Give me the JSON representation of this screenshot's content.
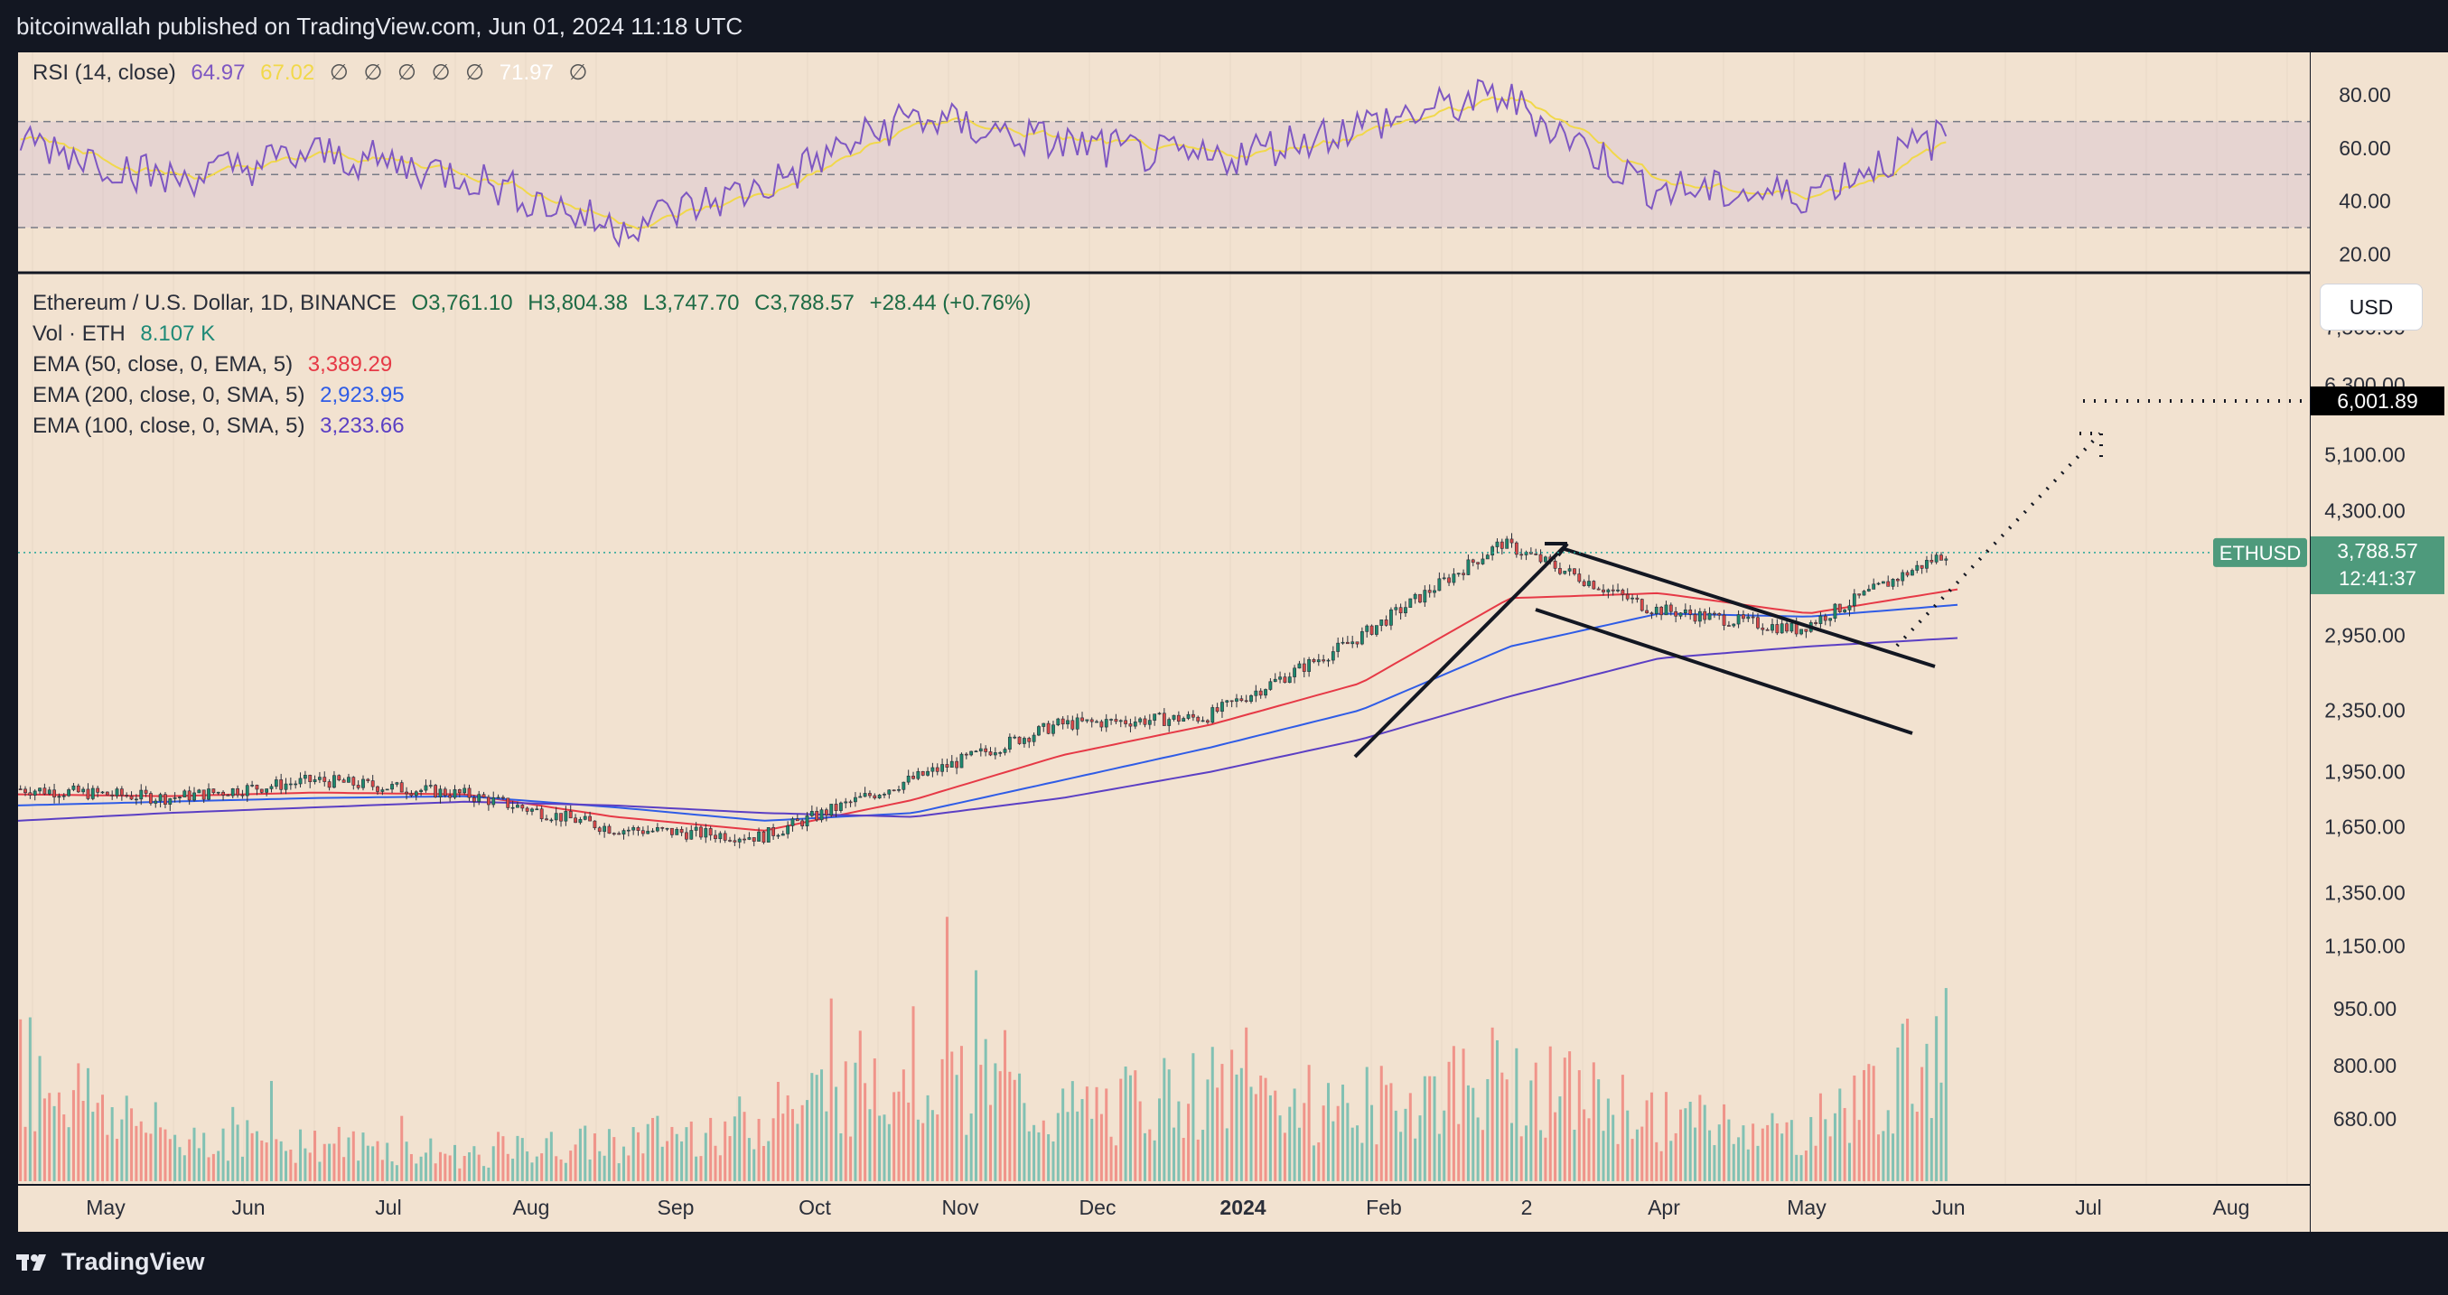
{
  "header": {
    "published_text": "bitcoinwallah published on TradingView.com, Jun 01, 2024 11:18 UTC"
  },
  "footer": {
    "brand": "TradingView"
  },
  "rsi_panel": {
    "label": "RSI (14, close)",
    "rsi_value": "64.97",
    "sma_value": "67.02",
    "flags": [
      "∅",
      "∅",
      "∅",
      "∅",
      "∅"
    ],
    "upper_value": "71.97",
    "extra_flag": "∅",
    "axis_ticks": [
      "80.00",
      "60.00",
      "40.00",
      "20.00"
    ]
  },
  "price_panel": {
    "symbol_line": "Ethereum / U.S. Dollar, 1D, BINANCE",
    "ohlc": {
      "o": "O3,761.10",
      "h": "H3,804.38",
      "l": "L3,747.70",
      "c": "C3,788.57",
      "change": "+28.44 (+0.76%)"
    },
    "volume": {
      "label": "Vol · ETH",
      "value": "8.107 K"
    },
    "indicators": [
      {
        "label": "EMA (50, close, 0, EMA, 5)",
        "value": "3,389.29",
        "color": "#e63946"
      },
      {
        "label": "EMA (200, close, 0, SMA, 5)",
        "value": "2,923.95",
        "color": "#2f5ce6"
      },
      {
        "label": "EMA (100, close, 0, SMA, 5)",
        "value": "3,233.66",
        "color": "#5b3fc4"
      }
    ],
    "currency_button": "USD",
    "target_label": "6,001.89",
    "symbol_tag": "ETHUSD",
    "last_price_label": "3,788.57",
    "countdown": "12:41:37",
    "price_axis_ticks": [
      "7,500.00",
      "6,300.00",
      "5,100.00",
      "4,300.00",
      "2,950.00",
      "2,350.00",
      "1,950.00",
      "1,650.00",
      "1,350.00",
      "1,150.00",
      "950.00",
      "800.00",
      "680.00"
    ]
  },
  "time_axis": [
    "May",
    "Jun",
    "Jul",
    "Aug",
    "Sep",
    "Oct",
    "Nov",
    "Dec",
    "2024",
    "Feb",
    "2",
    "Apr",
    "May",
    "Jun",
    "Jul",
    "Aug"
  ],
  "colors": {
    "background": "#f2e2d0",
    "up": "#26a69a",
    "down": "#ef5350",
    "rsi_line": "#7e57c2",
    "rsi_sma": "#f1d84a"
  },
  "chart_data": {
    "type": "line",
    "title": "Ethereum / U.S. Dollar, 1D, BINANCE",
    "x": [
      "2023-05",
      "2023-06",
      "2023-07",
      "2023-08",
      "2023-09",
      "2023-10",
      "2023-11",
      "2023-12",
      "2024-01",
      "2024-02",
      "2024-03",
      "2024-04",
      "2024-05",
      "2024-06"
    ],
    "series": [
      {
        "name": "ETHUSD",
        "values": [
          1850,
          1800,
          1900,
          1820,
          1640,
          1600,
          1900,
          2250,
          2300,
          2900,
          3900,
          3200,
          3000,
          3788.57
        ]
      },
      {
        "name": "EMA (50, close, 0, EMA, 5)",
        "values": [
          1820,
          1810,
          1830,
          1820,
          1700,
          1630,
          1790,
          2050,
          2250,
          2550,
          3300,
          3350,
          3150,
          3389.29
        ]
      },
      {
        "name": "EMA (100, close, 0, SMA, 5)",
        "values": [
          1760,
          1780,
          1800,
          1810,
          1750,
          1680,
          1720,
          1900,
          2100,
          2350,
          2850,
          3150,
          3120,
          3233.66
        ]
      },
      {
        "name": "EMA (200, close, 0, SMA, 5)",
        "values": [
          1680,
          1720,
          1750,
          1780,
          1760,
          1720,
          1700,
          1800,
          1950,
          2150,
          2450,
          2750,
          2850,
          2923.95
        ]
      }
    ],
    "rsi": {
      "name": "RSI (14, close)",
      "values": [
        64,
        48,
        58,
        50,
        30,
        45,
        72,
        62,
        55,
        68,
        80,
        45,
        42,
        64.97
      ],
      "ylim": [
        15,
        92
      ]
    },
    "volume_levels": [
      0.9,
      0.35,
      0.3,
      0.2,
      0.3,
      0.45,
      0.95,
      0.5,
      0.7,
      0.55,
      0.8,
      0.5,
      0.35,
      1.0
    ],
    "price_axis": {
      "scale": "log",
      "ylim": [
        560,
        8200
      ]
    },
    "annotations": [
      {
        "type": "target_line",
        "value": 6001.89
      },
      {
        "type": "last_price_line",
        "value": 3788.57
      }
    ]
  }
}
